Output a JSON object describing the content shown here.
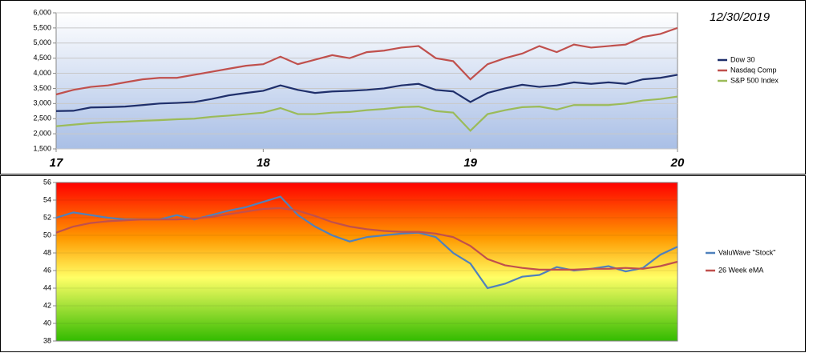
{
  "chart_data": [
    {
      "type": "line",
      "annotation": "12/30/2019",
      "x": [
        17.0,
        17.083,
        17.167,
        17.25,
        17.333,
        17.417,
        17.5,
        17.583,
        17.667,
        17.75,
        17.833,
        17.917,
        18.0,
        18.083,
        18.167,
        18.25,
        18.333,
        18.417,
        18.5,
        18.583,
        18.667,
        18.75,
        18.833,
        18.917,
        19.0,
        19.083,
        19.167,
        19.25,
        19.333,
        19.417,
        19.5,
        19.583,
        19.667,
        19.75,
        19.833,
        19.917,
        20.0
      ],
      "xlim": [
        17,
        20
      ],
      "xticks": [
        17,
        18,
        19,
        20
      ],
      "ylim": [
        1500,
        6000
      ],
      "yticks": [
        {
          "value": 1500,
          "label": "1,500"
        },
        {
          "value": 2000,
          "label": "2,000"
        },
        {
          "value": 2500,
          "label": "2,500"
        },
        {
          "value": 3000,
          "label": "3,000"
        },
        {
          "value": 3500,
          "label": "3,500"
        },
        {
          "value": 4000,
          "label": "4,000"
        },
        {
          "value": 4500,
          "label": "4,500"
        },
        {
          "value": 5000,
          "label": "5,000"
        },
        {
          "value": 5500,
          "label": "5,500"
        },
        {
          "value": 6000,
          "label": "6,000"
        }
      ],
      "grid": true,
      "series": [
        {
          "name": "Dow 30",
          "color": "#1f2f6b",
          "values": [
            2750,
            2760,
            2870,
            2880,
            2900,
            2950,
            3000,
            3020,
            3050,
            3150,
            3270,
            3350,
            3420,
            3600,
            3450,
            3350,
            3400,
            3420,
            3450,
            3500,
            3600,
            3650,
            3450,
            3400,
            3050,
            3350,
            3500,
            3620,
            3550,
            3600,
            3700,
            3650,
            3700,
            3650,
            3800,
            3850,
            3950
          ]
        },
        {
          "name": "Nasdaq Comp",
          "color": "#c0504d",
          "values": [
            3300,
            3450,
            3550,
            3600,
            3700,
            3800,
            3850,
            3850,
            3950,
            4050,
            4150,
            4250,
            4300,
            4550,
            4300,
            4450,
            4600,
            4500,
            4700,
            4750,
            4850,
            4900,
            4500,
            4400,
            3800,
            4300,
            4500,
            4650,
            4900,
            4700,
            4950,
            4850,
            4900,
            4950,
            5200,
            5300,
            5500
          ]
        },
        {
          "name": "S&P 500 Index",
          "color": "#9bbb59",
          "values": [
            2250,
            2300,
            2350,
            2380,
            2400,
            2430,
            2450,
            2480,
            2500,
            2560,
            2600,
            2650,
            2700,
            2850,
            2650,
            2650,
            2700,
            2720,
            2780,
            2820,
            2880,
            2900,
            2750,
            2700,
            2100,
            2650,
            2780,
            2880,
            2900,
            2800,
            2950,
            2950,
            2950,
            3000,
            3100,
            3150,
            3230
          ]
        }
      ]
    },
    {
      "type": "line",
      "x": [
        17.0,
        17.083,
        17.167,
        17.25,
        17.333,
        17.417,
        17.5,
        17.583,
        17.667,
        17.75,
        17.833,
        17.917,
        18.0,
        18.083,
        18.167,
        18.25,
        18.333,
        18.417,
        18.5,
        18.583,
        18.667,
        18.75,
        18.833,
        18.917,
        19.0,
        19.083,
        19.167,
        19.25,
        19.333,
        19.417,
        19.5,
        19.583,
        19.667,
        19.75,
        19.833,
        19.917,
        20.0
      ],
      "xlim": [
        17,
        20
      ],
      "ylim": [
        38,
        56
      ],
      "yticks": [
        38,
        40,
        42,
        44,
        46,
        48,
        50,
        52,
        54,
        56
      ],
      "grid": true,
      "series": [
        {
          "name": "ValuWave \"Stock\"",
          "color": "#4f81bd",
          "values": [
            52.0,
            52.6,
            52.3,
            52.0,
            51.8,
            51.8,
            51.8,
            52.3,
            51.8,
            52.3,
            52.8,
            53.2,
            53.8,
            54.4,
            52.3,
            51.0,
            50.0,
            49.3,
            49.8,
            50.0,
            50.2,
            50.3,
            49.8,
            48.0,
            46.8,
            44.0,
            44.5,
            45.3,
            45.5,
            46.4,
            46.0,
            46.2,
            46.5,
            45.9,
            46.3,
            47.8,
            48.7
          ]
        },
        {
          "name": "26 Week eMA",
          "color": "#c0504d",
          "values": [
            50.3,
            51.0,
            51.4,
            51.6,
            51.7,
            51.8,
            51.8,
            51.8,
            51.9,
            52.1,
            52.4,
            52.7,
            53.0,
            53.1,
            52.8,
            52.2,
            51.5,
            51.0,
            50.7,
            50.5,
            50.4,
            50.4,
            50.2,
            49.8,
            48.8,
            47.3,
            46.6,
            46.3,
            46.1,
            46.1,
            46.1,
            46.2,
            46.2,
            46.3,
            46.2,
            46.5,
            47.0
          ]
        }
      ]
    }
  ]
}
